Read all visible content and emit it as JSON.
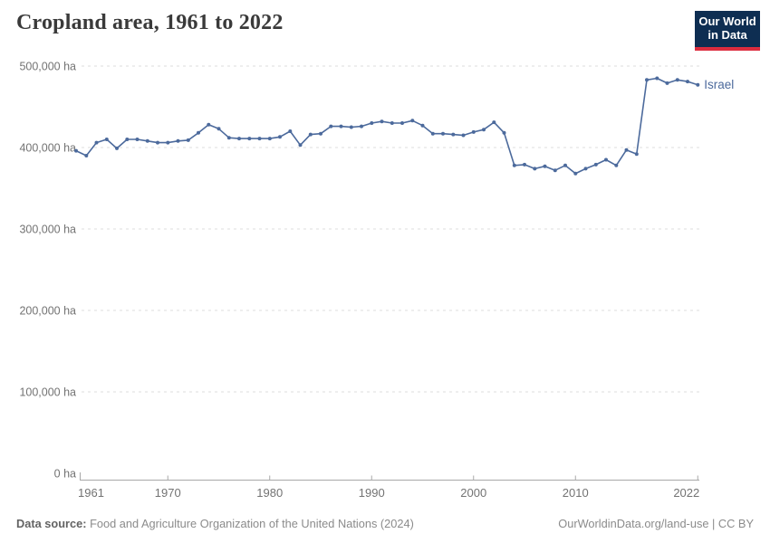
{
  "header": {
    "title": "Cropland area, 1961 to 2022"
  },
  "logo": {
    "line1": "Our World",
    "line2": "in Data",
    "bg_color": "#0e2e52",
    "bar_color": "#dc2c3e"
  },
  "chart_data": {
    "type": "line",
    "title": "Cropland area, 1961 to 2022",
    "xlabel": "",
    "ylabel": "",
    "unit": "ha",
    "xlim": [
      1961,
      2022
    ],
    "ylim": [
      0,
      500000
    ],
    "grid": "horizontal-dashed",
    "legend_position": "end-of-line-label",
    "x_ticks": [
      {
        "year": 1961,
        "label": "1961"
      },
      {
        "year": 1970,
        "label": "1970"
      },
      {
        "year": 1980,
        "label": "1980"
      },
      {
        "year": 1990,
        "label": "1990"
      },
      {
        "year": 2000,
        "label": "2000"
      },
      {
        "year": 2010,
        "label": "2010"
      },
      {
        "year": 2022,
        "label": "2022"
      }
    ],
    "y_ticks": [
      {
        "value": 0,
        "label": "0 ha"
      },
      {
        "value": 100000,
        "label": "100,000 ha"
      },
      {
        "value": 200000,
        "label": "200,000 ha"
      },
      {
        "value": 300000,
        "label": "300,000 ha"
      },
      {
        "value": 400000,
        "label": "400,000 ha"
      },
      {
        "value": 500000,
        "label": "500,000 ha"
      }
    ],
    "series": [
      {
        "name": "Israel",
        "color": "#4c6a9c",
        "x": [
          1961,
          1962,
          1963,
          1964,
          1965,
          1966,
          1967,
          1968,
          1969,
          1970,
          1971,
          1972,
          1973,
          1974,
          1975,
          1976,
          1977,
          1978,
          1979,
          1980,
          1981,
          1982,
          1983,
          1984,
          1985,
          1986,
          1987,
          1988,
          1989,
          1990,
          1991,
          1992,
          1993,
          1994,
          1995,
          1996,
          1997,
          1998,
          1999,
          2000,
          2001,
          2002,
          2003,
          2004,
          2005,
          2006,
          2007,
          2008,
          2009,
          2010,
          2011,
          2012,
          2013,
          2014,
          2015,
          2016,
          2017,
          2018,
          2019,
          2020,
          2021,
          2022
        ],
        "values": [
          396000,
          390000,
          406000,
          410000,
          399000,
          410000,
          410000,
          408000,
          406000,
          406000,
          408000,
          409000,
          418000,
          428000,
          423000,
          412000,
          411000,
          411000,
          411000,
          411000,
          413000,
          420000,
          403000,
          416000,
          417000,
          426000,
          426000,
          425000,
          426000,
          430000,
          432000,
          430000,
          430000,
          433000,
          427000,
          417000,
          417000,
          416000,
          415000,
          419000,
          422000,
          431000,
          418000,
          378000,
          379000,
          374000,
          377000,
          372000,
          378000,
          368000,
          374000,
          379000,
          385000,
          378000,
          397000,
          392000,
          483000,
          485000,
          479000,
          483000,
          481000,
          477000
        ]
      }
    ]
  },
  "footer": {
    "source_label": "Data source:",
    "source_text": " Food and Agriculture Organization of the United Nations (2024)",
    "credit": "OurWorldinData.org/land-use | CC BY"
  },
  "colors": {
    "line": "#4c6a9c",
    "gridline": "#dcdcdc",
    "axis": "#a8a8a8",
    "tick_text": "#737373",
    "title_text": "#3a3a3a"
  }
}
